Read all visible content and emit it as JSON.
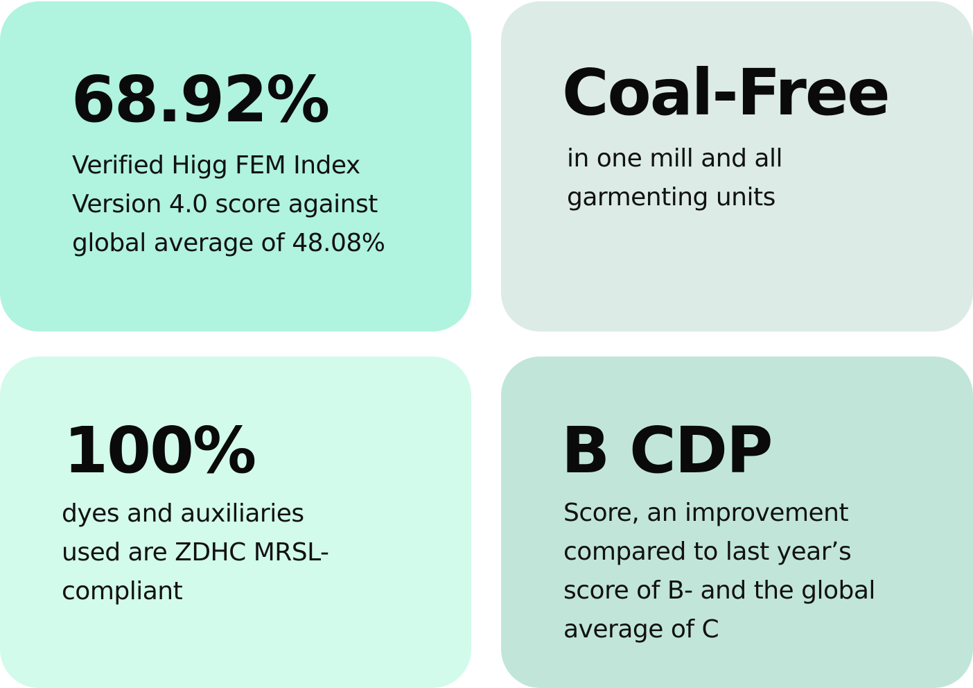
{
  "cards": [
    {
      "stat": "68.92%",
      "desc_lines": [
        "Verified Higg FEM Index",
        "Version 4.0 score against",
        "global average of 48.08%"
      ],
      "background": "#b0f3de"
    },
    {
      "stat": "Coal-Free",
      "desc_lines": [
        "in one mill and all",
        "garmenting units"
      ],
      "background": "#dcebe6"
    },
    {
      "stat": "100%",
      "desc_lines": [
        "dyes and auxiliaries",
        "used are ZDHC MRSL-",
        "compliant"
      ],
      "background": "#d2fbec"
    },
    {
      "stat": "B CDP",
      "desc_lines": [
        "Score, an improvement",
        "compared to last year’s",
        "score of B- and the global",
        "average of C"
      ],
      "background": "#c1e6d9"
    }
  ]
}
